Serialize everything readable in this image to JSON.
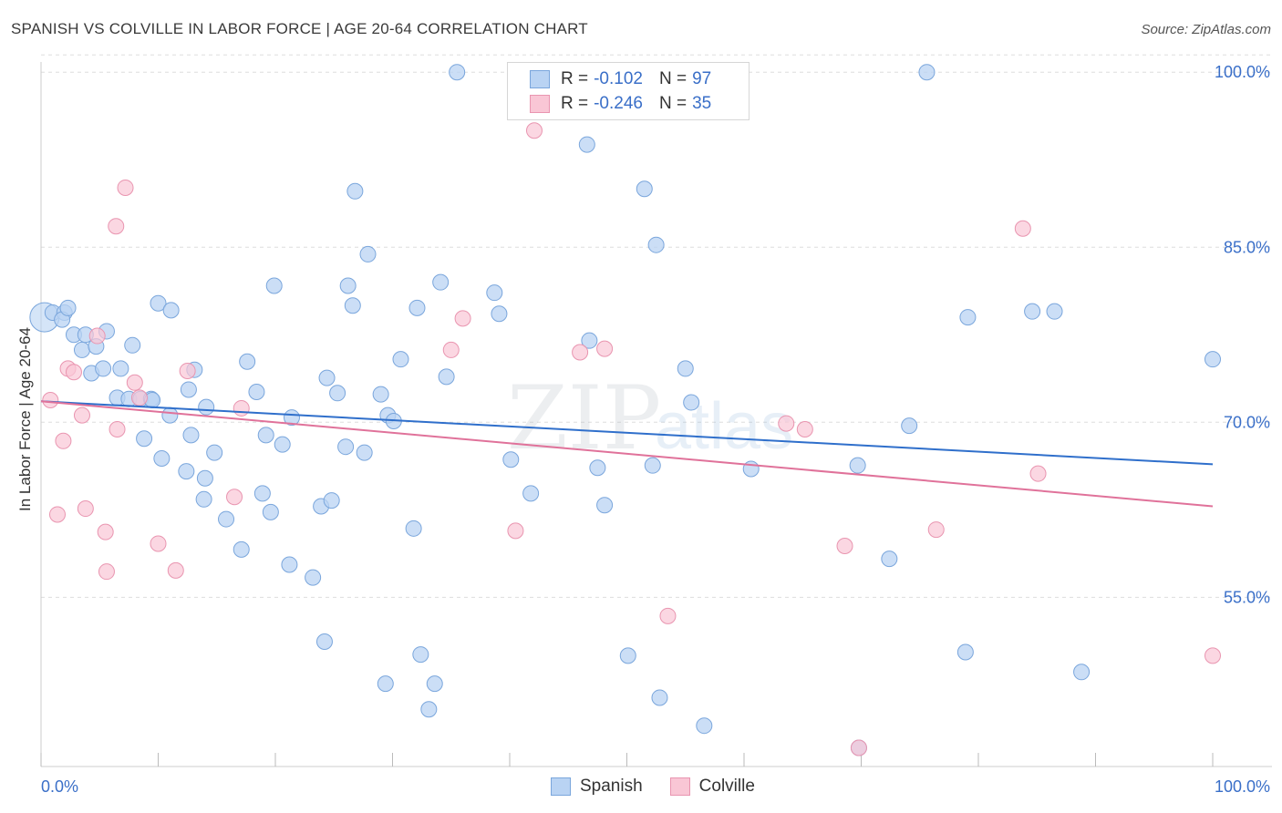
{
  "header": {
    "title": "SPANISH VS COLVILLE IN LABOR FORCE | AGE 20-64 CORRELATION CHART",
    "source": "Source: ZipAtlas.com"
  },
  "legend": {
    "rows": [
      {
        "r_label": "R =",
        "r_value": "-0.102",
        "n_label": "N =",
        "n_value": "97"
      },
      {
        "r_label": "R =",
        "r_value": "-0.246",
        "n_label": "N =",
        "n_value": "35"
      }
    ]
  },
  "bottom_legend": {
    "spanish": "Spanish",
    "colville": "Colville"
  },
  "watermark": {
    "zip": "ZIP",
    "atlas": "atlas"
  },
  "colors": {
    "spanish_fill": "#b9d3f3",
    "spanish_stroke": "#7aa6dc",
    "spanish_line": "#2f6fcb",
    "colville_fill": "#f9c6d5",
    "colville_stroke": "#e995b0",
    "colville_line": "#e0729a",
    "tick_label": "#3a6fc8",
    "grid": "#dddddd"
  },
  "chart_data": {
    "type": "scatter",
    "title": "SPANISH VS COLVILLE IN LABOR FORCE | AGE 20-64 CORRELATION CHART",
    "xlabel": "",
    "ylabel": "In Labor Force | Age 20-64",
    "xlim": [
      0,
      100
    ],
    "ylim": [
      40.5,
      101.5
    ],
    "x_tick_labels": [
      "0.0%",
      "100.0%"
    ],
    "y_ticks": [
      55,
      70,
      85,
      100
    ],
    "y_tick_labels": [
      "55.0%",
      "70.0%",
      "85.0%",
      "100.0%"
    ],
    "grid": true,
    "legend_position": "top-center",
    "series": [
      {
        "name": "Spanish",
        "trend": {
          "x": [
            0,
            100
          ],
          "y": [
            71.8,
            66.4
          ]
        },
        "points": [
          [
            0.3,
            79.0
          ],
          [
            1.0,
            79.4
          ],
          [
            2.0,
            79.4
          ],
          [
            1.8,
            78.8
          ],
          [
            2.3,
            79.8
          ],
          [
            2.8,
            77.5
          ],
          [
            3.5,
            76.2
          ],
          [
            3.8,
            77.5
          ],
          [
            4.7,
            76.5
          ],
          [
            5.6,
            77.8
          ],
          [
            4.3,
            74.2
          ],
          [
            5.3,
            74.6
          ],
          [
            6.8,
            74.6
          ],
          [
            7.8,
            76.6
          ],
          [
            6.5,
            72.1
          ],
          [
            7.5,
            72.0
          ],
          [
            8.5,
            72.0
          ],
          [
            9.4,
            72.0
          ],
          [
            9.5,
            71.9
          ],
          [
            8.8,
            68.6
          ],
          [
            10.0,
            80.2
          ],
          [
            11.1,
            79.6
          ],
          [
            11.0,
            70.6
          ],
          [
            12.6,
            72.8
          ],
          [
            12.8,
            68.9
          ],
          [
            13.1,
            74.5
          ],
          [
            14.1,
            71.3
          ],
          [
            14.8,
            67.4
          ],
          [
            12.4,
            65.8
          ],
          [
            10.3,
            66.9
          ],
          [
            14.0,
            65.2
          ],
          [
            13.9,
            63.4
          ],
          [
            15.8,
            61.7
          ],
          [
            17.6,
            75.2
          ],
          [
            18.4,
            72.6
          ],
          [
            19.2,
            68.9
          ],
          [
            17.1,
            59.1
          ],
          [
            18.9,
            63.9
          ],
          [
            19.6,
            62.3
          ],
          [
            20.6,
            68.1
          ],
          [
            21.4,
            70.4
          ],
          [
            21.2,
            57.8
          ],
          [
            23.2,
            56.7
          ],
          [
            23.9,
            62.8
          ],
          [
            24.2,
            51.2
          ],
          [
            24.4,
            73.8
          ],
          [
            24.8,
            63.3
          ],
          [
            25.3,
            72.5
          ],
          [
            26.0,
            67.9
          ],
          [
            26.2,
            81.7
          ],
          [
            26.6,
            80.0
          ],
          [
            27.6,
            67.4
          ],
          [
            27.9,
            84.4
          ],
          [
            29.0,
            72.4
          ],
          [
            29.6,
            70.6
          ],
          [
            30.1,
            70.1
          ],
          [
            30.7,
            75.4
          ],
          [
            29.4,
            47.6
          ],
          [
            31.8,
            60.9
          ],
          [
            32.1,
            79.8
          ],
          [
            32.4,
            50.1
          ],
          [
            33.1,
            45.4
          ],
          [
            33.6,
            47.6
          ],
          [
            34.1,
            82.0
          ],
          [
            34.6,
            73.9
          ],
          [
            19.9,
            81.7
          ],
          [
            26.8,
            89.8
          ],
          [
            35.5,
            100.0
          ],
          [
            38.7,
            81.1
          ],
          [
            39.1,
            79.3
          ],
          [
            40.1,
            66.8
          ],
          [
            41.8,
            63.9
          ],
          [
            44.6,
            100.0
          ],
          [
            46.6,
            93.8
          ],
          [
            46.8,
            77.0
          ],
          [
            47.5,
            66.1
          ],
          [
            48.1,
            62.9
          ],
          [
            50.1,
            50.0
          ],
          [
            51.5,
            90.0
          ],
          [
            52.2,
            66.3
          ],
          [
            52.5,
            85.2
          ],
          [
            52.8,
            46.4
          ],
          [
            55.0,
            74.6
          ],
          [
            55.5,
            71.7
          ],
          [
            56.6,
            44.0
          ],
          [
            60.6,
            66.0
          ],
          [
            69.7,
            66.3
          ],
          [
            69.8,
            42.1
          ],
          [
            72.4,
            58.3
          ],
          [
            74.1,
            69.7
          ],
          [
            75.6,
            100.0
          ],
          [
            78.9,
            50.3
          ],
          [
            79.1,
            79.0
          ],
          [
            84.6,
            79.5
          ],
          [
            86.5,
            79.5
          ],
          [
            88.8,
            48.6
          ],
          [
            100.0,
            75.4
          ]
        ]
      },
      {
        "name": "Colville",
        "trend": {
          "x": [
            0,
            100
          ],
          "y": [
            71.8,
            62.8
          ]
        },
        "points": [
          [
            0.8,
            71.9
          ],
          [
            1.4,
            62.1
          ],
          [
            1.9,
            68.4
          ],
          [
            2.3,
            74.6
          ],
          [
            2.8,
            74.3
          ],
          [
            3.5,
            70.6
          ],
          [
            3.8,
            62.6
          ],
          [
            4.8,
            77.4
          ],
          [
            5.5,
            60.6
          ],
          [
            5.6,
            57.2
          ],
          [
            6.4,
            86.8
          ],
          [
            6.5,
            69.4
          ],
          [
            7.2,
            90.1
          ],
          [
            8.0,
            73.4
          ],
          [
            8.4,
            72.1
          ],
          [
            10.0,
            59.6
          ],
          [
            11.5,
            57.3
          ],
          [
            12.5,
            74.4
          ],
          [
            16.5,
            63.6
          ],
          [
            17.1,
            71.2
          ],
          [
            35.0,
            76.2
          ],
          [
            36.0,
            78.9
          ],
          [
            40.5,
            60.7
          ],
          [
            42.1,
            95.0
          ],
          [
            46.0,
            76.0
          ],
          [
            48.1,
            76.3
          ],
          [
            53.5,
            53.4
          ],
          [
            63.6,
            69.9
          ],
          [
            65.2,
            69.4
          ],
          [
            68.6,
            59.4
          ],
          [
            69.8,
            42.1
          ],
          [
            76.4,
            60.8
          ],
          [
            83.8,
            86.6
          ],
          [
            85.1,
            65.6
          ],
          [
            100.0,
            50.0
          ]
        ]
      }
    ]
  }
}
